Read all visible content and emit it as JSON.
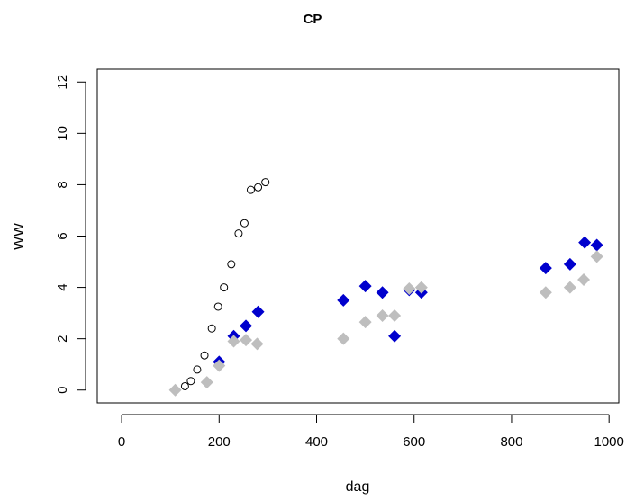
{
  "chart_data": {
    "type": "scatter",
    "title": "CP",
    "xlabel": "dag",
    "ylabel": "WW",
    "xlim": [
      -50,
      1020
    ],
    "ylim": [
      -0.5,
      12.5
    ],
    "xticks": [
      0,
      200,
      400,
      600,
      800,
      1000
    ],
    "yticks": [
      0,
      2,
      4,
      6,
      8,
      10,
      12
    ],
    "grid": false,
    "legend": "none",
    "series": [
      {
        "marker": "open-circle",
        "color": "#000000",
        "points": [
          [
            130,
            0.15
          ],
          [
            142,
            0.35
          ],
          [
            155,
            0.8
          ],
          [
            170,
            1.35
          ],
          [
            185,
            2.4
          ],
          [
            198,
            3.25
          ],
          [
            210,
            4.0
          ],
          [
            225,
            4.9
          ],
          [
            240,
            6.1
          ],
          [
            252,
            6.5
          ],
          [
            265,
            7.8
          ],
          [
            280,
            7.9
          ],
          [
            295,
            8.1
          ]
        ]
      },
      {
        "marker": "filled-diamond",
        "color": "#0000CD",
        "points": [
          [
            200,
            1.1
          ],
          [
            230,
            2.1
          ],
          [
            255,
            2.5
          ],
          [
            280,
            3.05
          ],
          [
            455,
            3.5
          ],
          [
            500,
            4.05
          ],
          [
            535,
            3.8
          ],
          [
            560,
            2.1
          ],
          [
            590,
            3.9
          ],
          [
            615,
            3.8
          ],
          [
            870,
            4.75
          ],
          [
            920,
            4.9
          ],
          [
            950,
            5.75
          ],
          [
            975,
            5.65
          ]
        ]
      },
      {
        "marker": "filled-diamond",
        "color": "#BEBEBE",
        "points": [
          [
            110,
            0.0
          ],
          [
            175,
            0.3
          ],
          [
            200,
            0.95
          ],
          [
            230,
            1.9
          ],
          [
            255,
            1.95
          ],
          [
            278,
            1.8
          ],
          [
            455,
            2.0
          ],
          [
            500,
            2.65
          ],
          [
            535,
            2.9
          ],
          [
            560,
            2.9
          ],
          [
            590,
            3.95
          ],
          [
            615,
            4.0
          ],
          [
            870,
            3.8
          ],
          [
            920,
            4.0
          ],
          [
            948,
            4.3
          ],
          [
            975,
            5.2
          ]
        ]
      }
    ]
  }
}
